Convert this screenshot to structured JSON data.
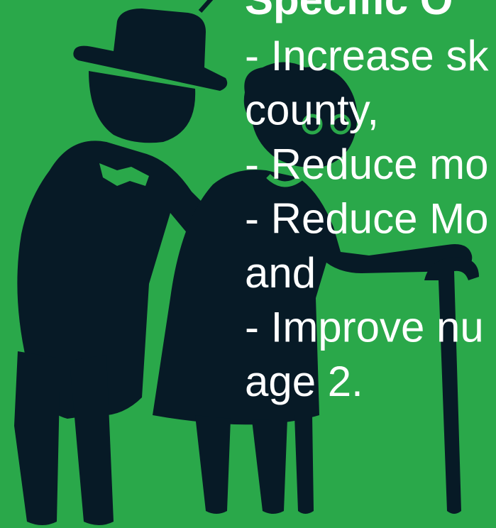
{
  "slide": {
    "title": "Specific O",
    "bullets": [
      "- Increase sk",
      "county,",
      "- Reduce mo",
      "- Reduce Mo",
      "and",
      "- Improve nu",
      "age 2."
    ]
  }
}
